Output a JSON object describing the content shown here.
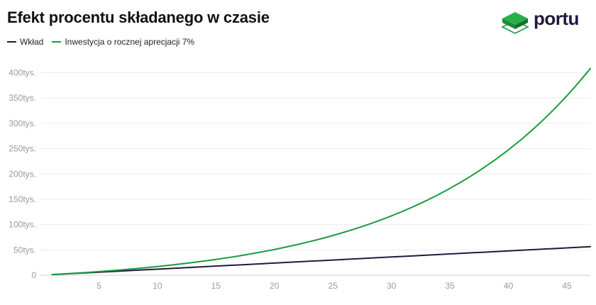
{
  "title": "Efekt procentu składanego w czasie",
  "brand": {
    "name": "portu",
    "logo_icon": "stacked-green-cubes-icon",
    "colors": {
      "green": "#1a9b3f",
      "dark": "#241a3d"
    }
  },
  "chart_data": {
    "type": "line",
    "title": "Efekt procentu składanego w czasie",
    "xlabel": "",
    "ylabel": "",
    "xlim": [
      0,
      47
    ],
    "ylim": [
      0,
      440000
    ],
    "x_ticks": [
      5,
      10,
      15,
      20,
      25,
      30,
      35,
      40,
      45
    ],
    "y_ticks": [
      {
        "value": 0,
        "label": "0"
      },
      {
        "value": 50000,
        "label": "50tys."
      },
      {
        "value": 100000,
        "label": "100tys."
      },
      {
        "value": 150000,
        "label": "150tys."
      },
      {
        "value": 200000,
        "label": "200tys."
      },
      {
        "value": 250000,
        "label": "250tys."
      },
      {
        "value": 300000,
        "label": "300tys."
      },
      {
        "value": 350000,
        "label": "350tys."
      },
      {
        "value": 400000,
        "label": "400tys."
      }
    ],
    "grid": "horizontal",
    "legend_position": "top-left",
    "x": [
      1,
      2,
      3,
      4,
      5,
      6,
      7,
      8,
      9,
      10,
      11,
      12,
      13,
      14,
      15,
      16,
      17,
      18,
      19,
      20,
      21,
      22,
      23,
      24,
      25,
      26,
      27,
      28,
      29,
      30,
      31,
      32,
      33,
      34,
      35,
      36,
      37,
      38,
      39,
      40,
      41,
      42,
      43,
      44,
      45,
      46,
      47
    ],
    "series": [
      {
        "name": "Wkład",
        "color": "#241a3d",
        "values": [
          1200,
          2400,
          3600,
          4800,
          6000,
          7200,
          8400,
          9600,
          10800,
          12000,
          13200,
          14400,
          15600,
          16800,
          18000,
          19200,
          20400,
          21600,
          22800,
          24000,
          25200,
          26400,
          27600,
          28800,
          30000,
          31200,
          32400,
          33600,
          34800,
          36000,
          37200,
          38400,
          39600,
          40800,
          42000,
          43200,
          44400,
          45600,
          46800,
          48000,
          49200,
          50400,
          51600,
          52800,
          54000,
          55200,
          56400
        ]
      },
      {
        "name": "Inwestycja o rocznej aprecjacji 7%",
        "color": "#1a9b3f",
        "values": [
          1240,
          2567,
          3987,
          5507,
          7133,
          8872,
          10734,
          12725,
          14857,
          17138,
          19578,
          22189,
          24983,
          27972,
          31171,
          34594,
          38256,
          42175,
          46368,
          50855,
          55656,
          60793,
          66289,
          72170,
          78463,
          85196,
          92400,
          100108,
          108356,
          117181,
          126624,
          136727,
          147538,
          159106,
          171483,
          184727,
          198898,
          214060,
          230284,
          247644,
          266219,
          286093,
          307359,
          330113,
          354460,
          380512,
          408388
        ]
      }
    ]
  }
}
